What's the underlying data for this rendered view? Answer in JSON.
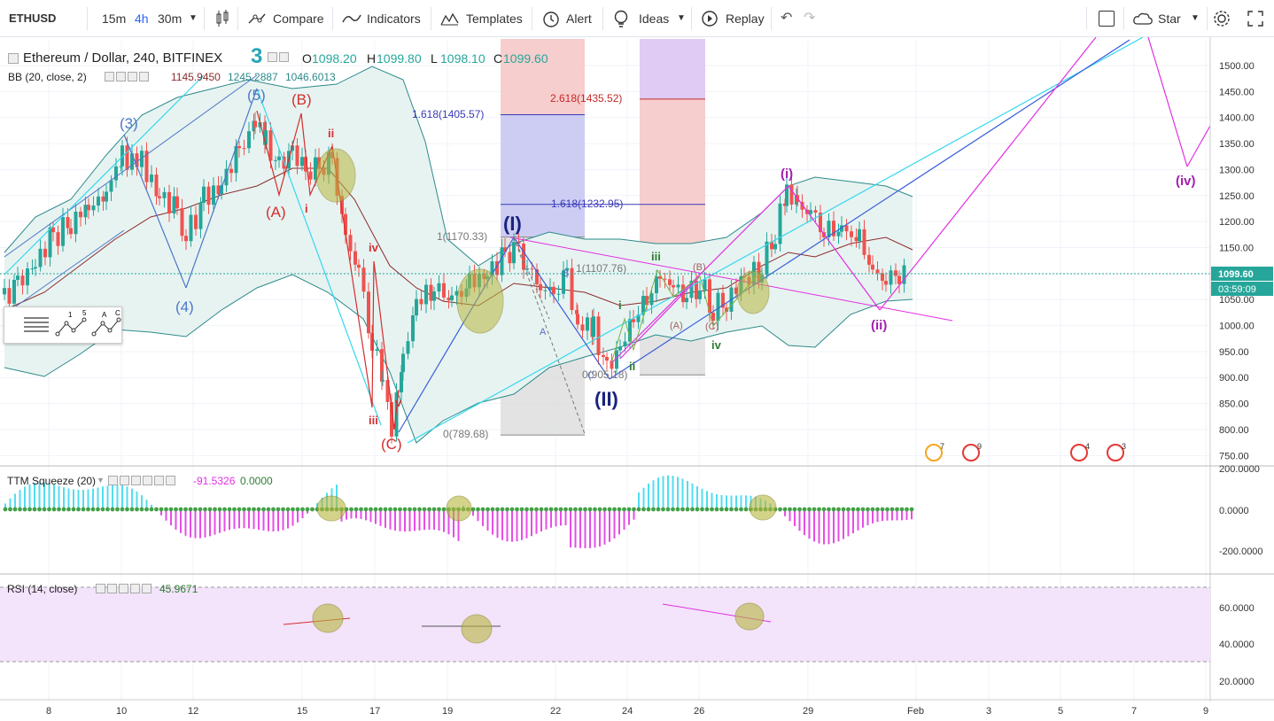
{
  "toolbar": {
    "symbol": "ETHUSD",
    "intervals": [
      "15m",
      "4h",
      "30m"
    ],
    "compare": "Compare",
    "indicators": "Indicators",
    "templates": "Templates",
    "alert": "Alert",
    "ideas": "Ideas",
    "replay": "Replay",
    "star": "Star",
    "icons": [
      "candles-icon",
      "compare-icon",
      "indicators-icon",
      "templates-icon",
      "alert-icon",
      "ideas-icon",
      "replay-icon",
      "undo-icon",
      "redo-icon",
      "square-icon",
      "cloud-icon",
      "gear-icon",
      "fullscreen-icon"
    ]
  },
  "legend": {
    "title": "Ethereum / Dollar, 240, BITFINEX",
    "badge": "3",
    "open": "O",
    "open_val": "1098.20",
    "high": "H",
    "high_val": "1099.80",
    "low": "L",
    "low_val": "1098.10",
    "close": "C",
    "close_val": "1099.60",
    "bb_label": "BB (20, close, 2)",
    "bb_vals": [
      "1145.9450",
      "1245.2887",
      "1046.6013"
    ]
  },
  "price_axis": {
    "labels": [
      "1500.00",
      "1450.00",
      "1400.00",
      "1350.00",
      "1300.00",
      "1250.00",
      "1200.00",
      "1150.00",
      "1100.00",
      "1050.00",
      "1000.00",
      "950.00",
      "900.00",
      "850.00",
      "800.00",
      "750.00"
    ],
    "current_price": "1099.60",
    "countdown": "03:59:09"
  },
  "squeeze": {
    "label": "TTM Squeeze (20)",
    "val1": "-91.5326",
    "val2": "0.0000",
    "axis": [
      "200.0000",
      "0.0000",
      "-200.0000"
    ]
  },
  "rsi": {
    "label": "RSI (14, close)",
    "val": "45.9671",
    "axis": [
      "60.0000",
      "40.0000",
      "20.0000"
    ]
  },
  "time_axis": [
    "8",
    "10",
    "12",
    "15",
    "17",
    "19",
    "22",
    "24",
    "26",
    "29",
    "Feb",
    "3",
    "5",
    "7",
    "9"
  ],
  "annotations": {
    "fib_a": [
      "1.618(1405.57)",
      "1.618(1232.95)",
      "1(1170.33)",
      "0(789.68)"
    ],
    "fib_b": [
      "2.618(1435.52)",
      "1(1107.76)",
      "0(905.18)"
    ],
    "waves_blue": [
      "(3)",
      "(4)",
      "(5)"
    ],
    "waves_red": [
      "(A)",
      "(B)",
      "(C)",
      "i",
      "ii",
      "iii",
      "iv",
      "v"
    ],
    "waves_navy": [
      "(I)",
      "(II)"
    ],
    "waves_purple": [
      "(i)",
      "(ii)",
      "(iv)"
    ],
    "waves_green": [
      "i",
      "ii",
      "iii",
      "iv"
    ],
    "waves_small": [
      "A",
      "B",
      "C",
      "(A)",
      "(B)",
      "(C)"
    ],
    "event_counts": [
      "7",
      "9",
      "4",
      "3"
    ]
  },
  "colors": {
    "up": "#26a69a",
    "down": "#ef5350",
    "bb_fill": "#e7f3f1",
    "bb_line": "#2c8a8a",
    "basis": "#8b2c2c",
    "blue": "#3a5ed9",
    "cyan": "#35d8ee",
    "magenta": "#e22fe2",
    "red_wave": "#d32f2f",
    "rsi_bg": "#f3e3fb",
    "olive": "#b7b63e"
  }
}
